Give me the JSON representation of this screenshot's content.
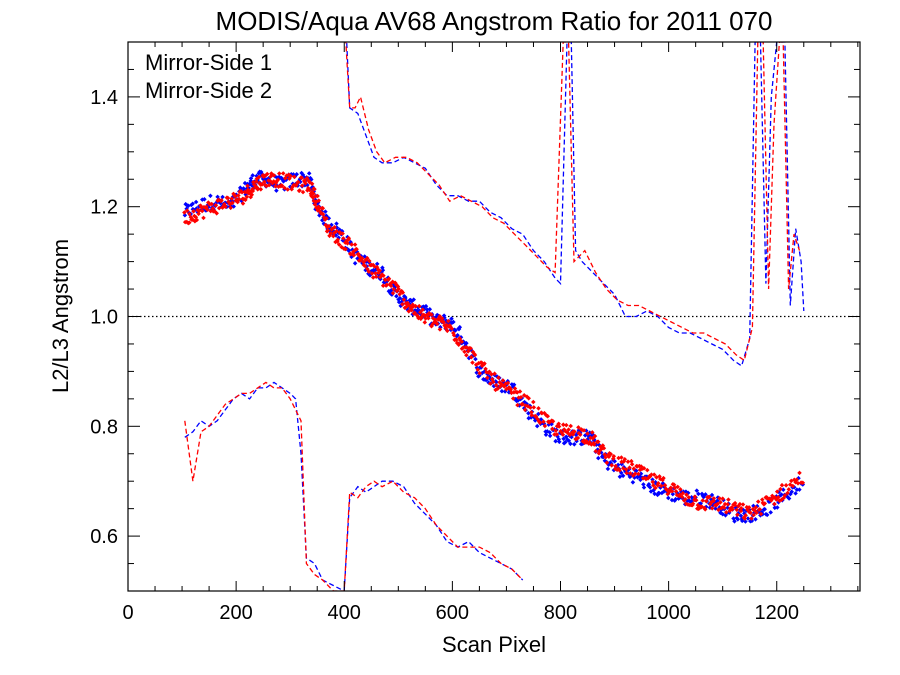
{
  "chart_data": {
    "type": "scatter",
    "title": "MODIS/Aqua AV68 Angstrom Ratio for 2011 070",
    "xlabel": "Scan Pixel",
    "ylabel": "L2/L3 Angstrom",
    "xlim": [
      0,
      1354
    ],
    "ylim": [
      0.5,
      1.5
    ],
    "xticks": [
      "0",
      "200",
      "400",
      "600",
      "800",
      "1000",
      "1200"
    ],
    "yticks": [
      "0.6",
      "0.8",
      "1.0",
      "1.2",
      "1.4"
    ],
    "reference_line": 1.0,
    "legend_placement": "top-left",
    "series": [
      {
        "name": "Mirror-Side 1",
        "color": "#0000ff",
        "ratio_points": [
          [
            105,
            1.19
          ],
          [
            130,
            1.2
          ],
          [
            160,
            1.21
          ],
          [
            190,
            1.2
          ],
          [
            215,
            1.23
          ],
          [
            235,
            1.25
          ],
          [
            255,
            1.25
          ],
          [
            280,
            1.24
          ],
          [
            310,
            1.25
          ],
          [
            335,
            1.25
          ],
          [
            350,
            1.2
          ],
          [
            370,
            1.17
          ],
          [
            395,
            1.15
          ],
          [
            420,
            1.11
          ],
          [
            445,
            1.09
          ],
          [
            470,
            1.08
          ],
          [
            495,
            1.04
          ],
          [
            520,
            1.02
          ],
          [
            545,
            1.01
          ],
          [
            570,
            0.99
          ],
          [
            595,
            0.99
          ],
          [
            620,
            0.96
          ],
          [
            650,
            0.9
          ],
          [
            680,
            0.88
          ],
          [
            710,
            0.87
          ],
          [
            740,
            0.83
          ],
          [
            770,
            0.8
          ],
          [
            800,
            0.78
          ],
          [
            830,
            0.78
          ],
          [
            855,
            0.78
          ],
          [
            880,
            0.74
          ],
          [
            910,
            0.72
          ],
          [
            940,
            0.71
          ],
          [
            970,
            0.69
          ],
          [
            1000,
            0.68
          ],
          [
            1030,
            0.67
          ],
          [
            1060,
            0.67
          ],
          [
            1090,
            0.66
          ],
          [
            1120,
            0.64
          ],
          [
            1150,
            0.64
          ],
          [
            1180,
            0.65
          ],
          [
            1210,
            0.67
          ],
          [
            1250,
            0.7
          ]
        ],
        "upper_curve": [
          [
            400,
            1.6
          ],
          [
            410,
            1.38
          ],
          [
            425,
            1.37
          ],
          [
            440,
            1.33
          ],
          [
            455,
            1.29
          ],
          [
            470,
            1.28
          ],
          [
            490,
            1.28
          ],
          [
            510,
            1.29
          ],
          [
            530,
            1.28
          ],
          [
            550,
            1.27
          ],
          [
            570,
            1.24
          ],
          [
            590,
            1.22
          ],
          [
            610,
            1.22
          ],
          [
            630,
            1.21
          ],
          [
            650,
            1.21
          ],
          [
            670,
            1.19
          ],
          [
            690,
            1.18
          ],
          [
            710,
            1.16
          ],
          [
            730,
            1.15
          ],
          [
            750,
            1.12
          ],
          [
            770,
            1.1
          ],
          [
            790,
            1.07
          ],
          [
            800,
            1.06
          ],
          [
            812,
            1.5
          ],
          [
            820,
            1.5
          ],
          [
            828,
            1.12
          ],
          [
            840,
            1.1
          ],
          [
            860,
            1.08
          ],
          [
            880,
            1.06
          ],
          [
            900,
            1.04
          ],
          [
            920,
            1.0
          ],
          [
            940,
            1.0
          ],
          [
            960,
            1.01
          ],
          [
            980,
            1.0
          ],
          [
            1000,
            0.98
          ],
          [
            1020,
            0.97
          ],
          [
            1040,
            0.97
          ],
          [
            1060,
            0.96
          ],
          [
            1080,
            0.95
          ],
          [
            1100,
            0.94
          ],
          [
            1120,
            0.92
          ],
          [
            1135,
            0.91
          ],
          [
            1150,
            0.96
          ],
          [
            1160,
            1.5
          ],
          [
            1170,
            1.5
          ],
          [
            1180,
            1.06
          ],
          [
            1190,
            1.4
          ],
          [
            1200,
            1.5
          ],
          [
            1215,
            1.5
          ],
          [
            1225,
            1.02
          ],
          [
            1235,
            1.16
          ],
          [
            1245,
            1.1
          ],
          [
            1250,
            1.01
          ]
        ],
        "lower_curve": [
          [
            105,
            0.78
          ],
          [
            120,
            0.79
          ],
          [
            135,
            0.81
          ],
          [
            150,
            0.8
          ],
          [
            165,
            0.81
          ],
          [
            180,
            0.83
          ],
          [
            195,
            0.85
          ],
          [
            210,
            0.86
          ],
          [
            225,
            0.85
          ],
          [
            240,
            0.87
          ],
          [
            255,
            0.87
          ],
          [
            270,
            0.88
          ],
          [
            285,
            0.87
          ],
          [
            300,
            0.86
          ],
          [
            310,
            0.85
          ],
          [
            320,
            0.75
          ],
          [
            330,
            0.56
          ],
          [
            345,
            0.55
          ],
          [
            360,
            0.52
          ],
          [
            380,
            0.51
          ],
          [
            400,
            0.5
          ],
          [
            410,
            0.67
          ],
          [
            425,
            0.69
          ],
          [
            440,
            0.68
          ],
          [
            455,
            0.69
          ],
          [
            470,
            0.7
          ],
          [
            490,
            0.7
          ],
          [
            510,
            0.69
          ],
          [
            530,
            0.66
          ],
          [
            550,
            0.64
          ],
          [
            570,
            0.62
          ],
          [
            590,
            0.59
          ],
          [
            610,
            0.58
          ],
          [
            630,
            0.59
          ],
          [
            650,
            0.57
          ],
          [
            670,
            0.56
          ],
          [
            690,
            0.55
          ],
          [
            710,
            0.54
          ],
          [
            730,
            0.52
          ]
        ]
      },
      {
        "name": "Mirror-Side 2",
        "color": "#ff0000",
        "ratio_points": [
          [
            105,
            1.18
          ],
          [
            130,
            1.19
          ],
          [
            160,
            1.2
          ],
          [
            190,
            1.21
          ],
          [
            215,
            1.22
          ],
          [
            235,
            1.24
          ],
          [
            255,
            1.25
          ],
          [
            280,
            1.25
          ],
          [
            310,
            1.24
          ],
          [
            335,
            1.24
          ],
          [
            350,
            1.21
          ],
          [
            370,
            1.16
          ],
          [
            395,
            1.14
          ],
          [
            420,
            1.12
          ],
          [
            445,
            1.09
          ],
          [
            470,
            1.07
          ],
          [
            495,
            1.05
          ],
          [
            520,
            1.02
          ],
          [
            545,
            1.0
          ],
          [
            570,
            0.99
          ],
          [
            595,
            0.98
          ],
          [
            620,
            0.95
          ],
          [
            650,
            0.91
          ],
          [
            680,
            0.88
          ],
          [
            710,
            0.86
          ],
          [
            740,
            0.84
          ],
          [
            770,
            0.81
          ],
          [
            800,
            0.79
          ],
          [
            830,
            0.79
          ],
          [
            855,
            0.78
          ],
          [
            880,
            0.75
          ],
          [
            910,
            0.73
          ],
          [
            940,
            0.72
          ],
          [
            970,
            0.7
          ],
          [
            1000,
            0.69
          ],
          [
            1030,
            0.67
          ],
          [
            1060,
            0.66
          ],
          [
            1090,
            0.66
          ],
          [
            1120,
            0.65
          ],
          [
            1150,
            0.64
          ],
          [
            1180,
            0.66
          ],
          [
            1210,
            0.68
          ],
          [
            1250,
            0.71
          ]
        ],
        "upper_curve": [
          [
            400,
            1.55
          ],
          [
            410,
            1.38
          ],
          [
            420,
            1.38
          ],
          [
            430,
            1.4
          ],
          [
            445,
            1.34
          ],
          [
            460,
            1.3
          ],
          [
            475,
            1.28
          ],
          [
            495,
            1.29
          ],
          [
            515,
            1.29
          ],
          [
            535,
            1.28
          ],
          [
            555,
            1.26
          ],
          [
            575,
            1.24
          ],
          [
            595,
            1.21
          ],
          [
            615,
            1.22
          ],
          [
            635,
            1.21
          ],
          [
            655,
            1.2
          ],
          [
            675,
            1.18
          ],
          [
            695,
            1.17
          ],
          [
            715,
            1.15
          ],
          [
            735,
            1.13
          ],
          [
            755,
            1.11
          ],
          [
            775,
            1.09
          ],
          [
            790,
            1.08
          ],
          [
            805,
            1.5
          ],
          [
            815,
            1.5
          ],
          [
            825,
            1.1
          ],
          [
            845,
            1.12
          ],
          [
            865,
            1.08
          ],
          [
            885,
            1.05
          ],
          [
            905,
            1.03
          ],
          [
            925,
            1.02
          ],
          [
            945,
            1.02
          ],
          [
            965,
            1.01
          ],
          [
            985,
            1.0
          ],
          [
            1005,
            0.99
          ],
          [
            1025,
            0.98
          ],
          [
            1045,
            0.97
          ],
          [
            1065,
            0.97
          ],
          [
            1085,
            0.96
          ],
          [
            1105,
            0.95
          ],
          [
            1125,
            0.93
          ],
          [
            1140,
            0.92
          ],
          [
            1155,
            0.98
          ],
          [
            1165,
            1.5
          ],
          [
            1175,
            1.5
          ],
          [
            1185,
            1.05
          ],
          [
            1195,
            1.35
          ],
          [
            1205,
            1.5
          ],
          [
            1212,
            1.5
          ],
          [
            1222,
            1.05
          ],
          [
            1232,
            1.15
          ],
          [
            1242,
            1.12
          ]
        ],
        "lower_curve": [
          [
            105,
            0.81
          ],
          [
            120,
            0.7
          ],
          [
            135,
            0.79
          ],
          [
            150,
            0.8
          ],
          [
            165,
            0.82
          ],
          [
            180,
            0.84
          ],
          [
            195,
            0.85
          ],
          [
            210,
            0.86
          ],
          [
            225,
            0.86
          ],
          [
            240,
            0.87
          ],
          [
            255,
            0.88
          ],
          [
            270,
            0.87
          ],
          [
            285,
            0.87
          ],
          [
            300,
            0.85
          ],
          [
            310,
            0.83
          ],
          [
            320,
            0.81
          ],
          [
            330,
            0.55
          ],
          [
            345,
            0.53
          ],
          [
            360,
            0.52
          ],
          [
            380,
            0.5
          ],
          [
            400,
            0.5
          ],
          [
            410,
            0.68
          ],
          [
            425,
            0.67
          ],
          [
            440,
            0.69
          ],
          [
            455,
            0.7
          ],
          [
            470,
            0.69
          ],
          [
            490,
            0.7
          ],
          [
            510,
            0.68
          ],
          [
            530,
            0.67
          ],
          [
            550,
            0.65
          ],
          [
            570,
            0.62
          ],
          [
            590,
            0.6
          ],
          [
            610,
            0.58
          ],
          [
            630,
            0.58
          ],
          [
            650,
            0.58
          ],
          [
            670,
            0.57
          ],
          [
            690,
            0.55
          ],
          [
            710,
            0.54
          ],
          [
            730,
            0.52
          ]
        ]
      }
    ]
  }
}
